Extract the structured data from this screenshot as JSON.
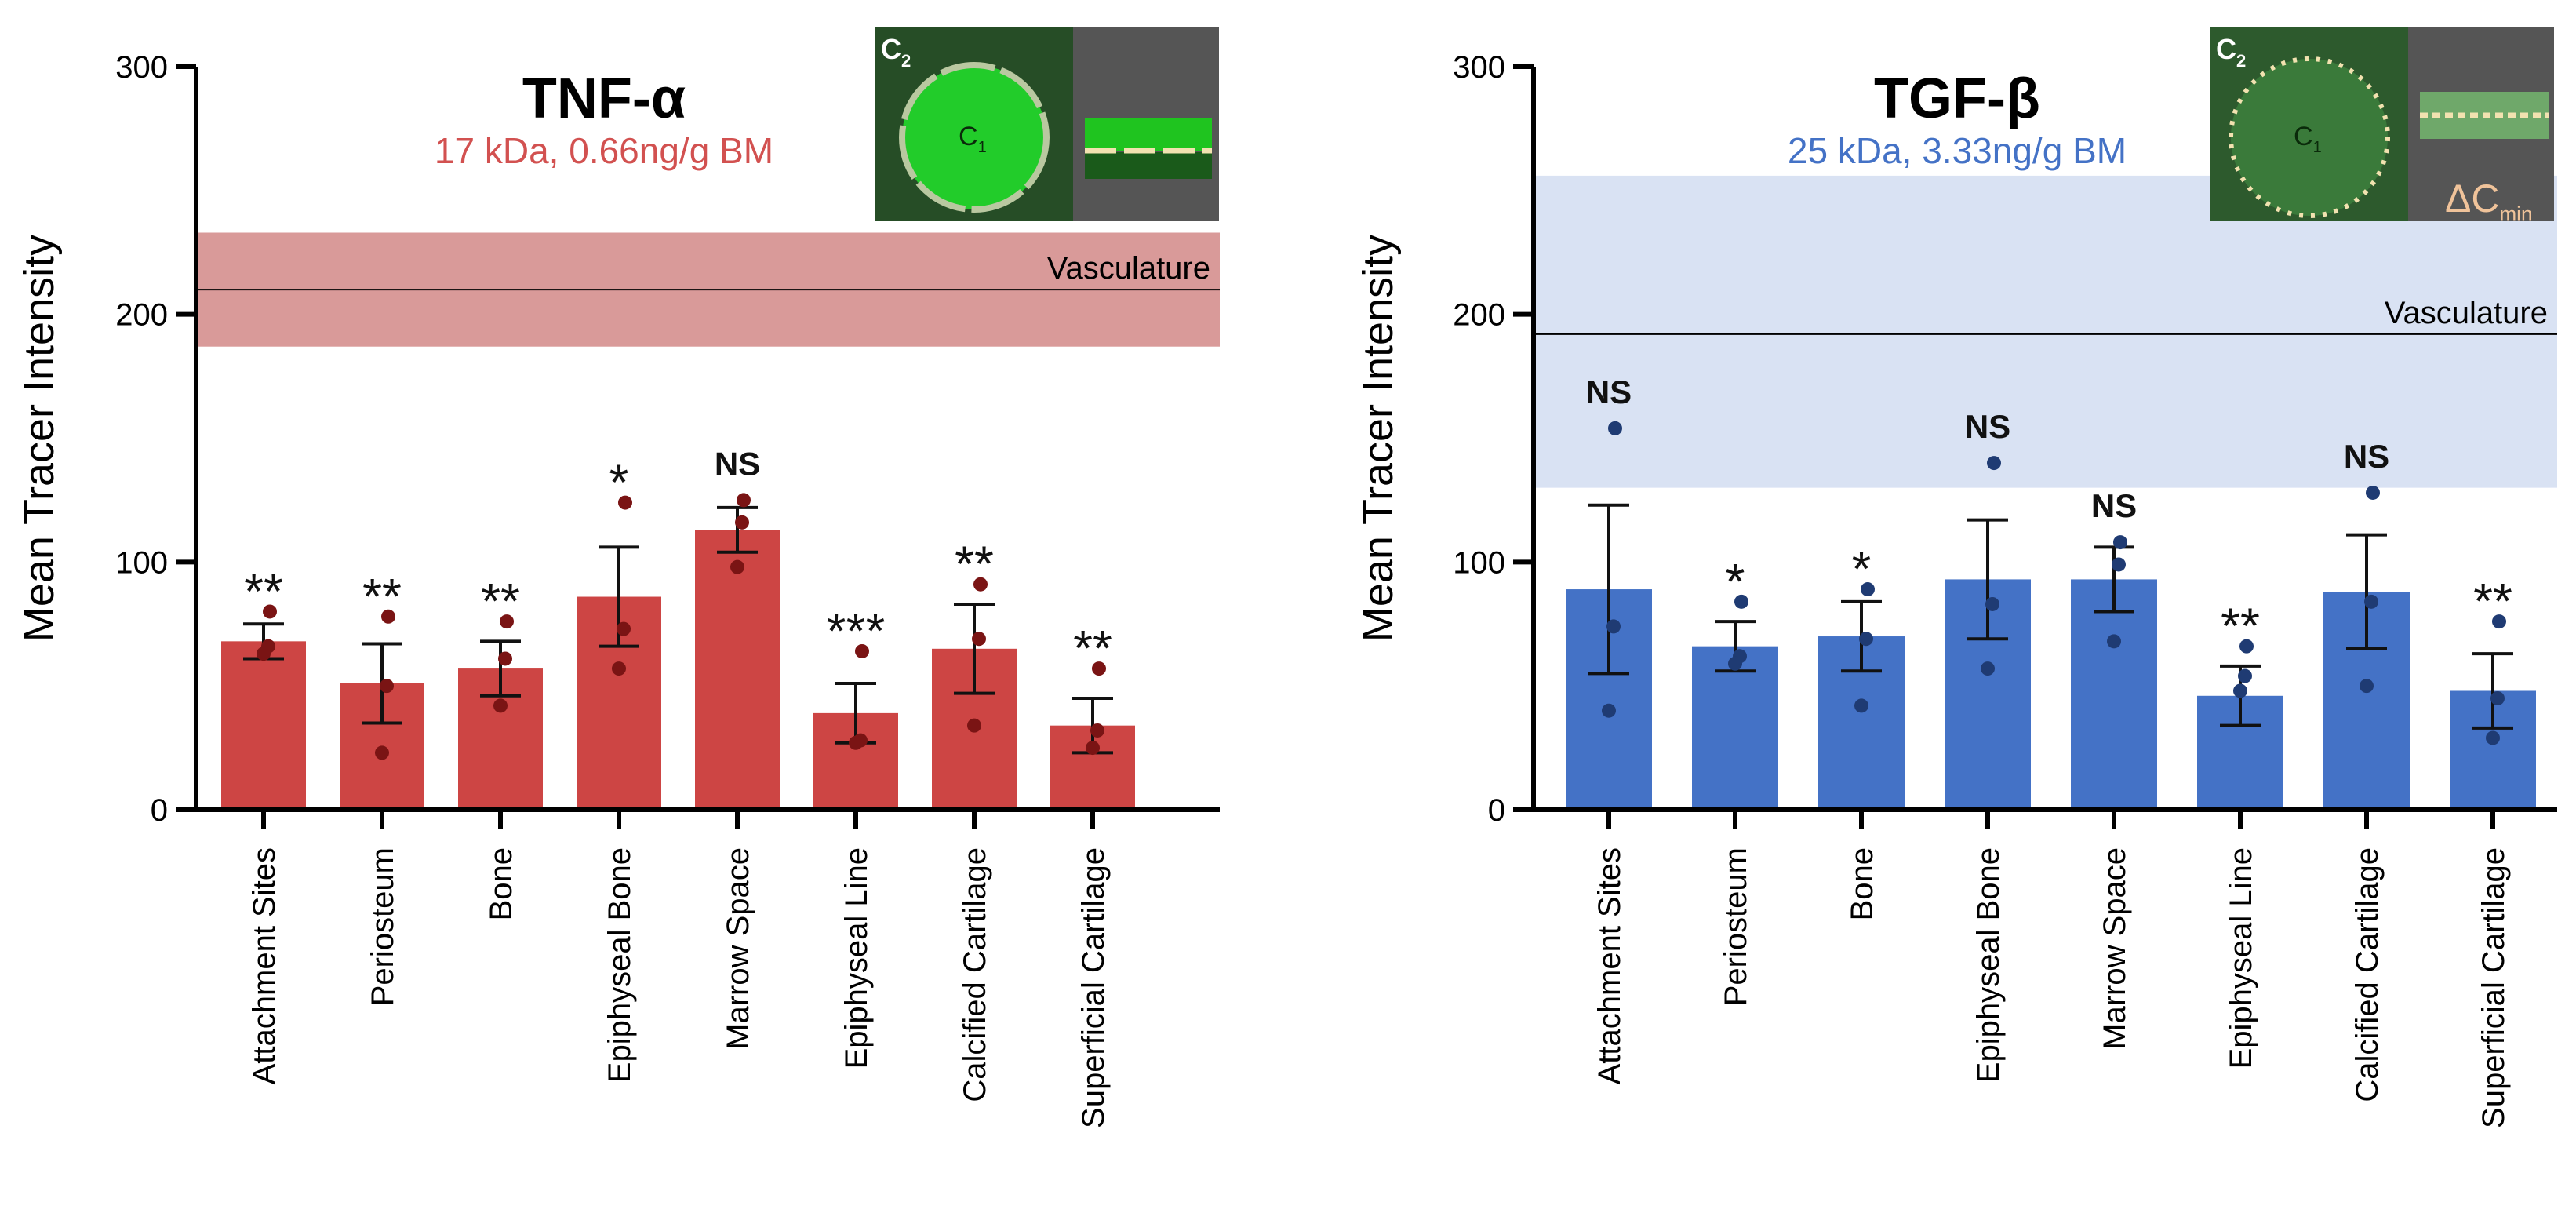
{
  "colors": {
    "tnf_bar": "#cd4544",
    "tnf_dot": "#7a1414",
    "tnf_band": "#d99a99",
    "tnf_subtitle": "#d25150",
    "tgf_bar": "#4472c6",
    "tgf_dot": "#1f3b73",
    "tgf_band": "#d9e2f3",
    "tgf_subtitle": "#4472c6",
    "axis": "#000000"
  },
  "chart_data": [
    {
      "type": "bar",
      "id": "tnf",
      "title": "TNF-α",
      "subtitle": "17 kDa, 0.66ng/g BM",
      "ylabel": "Mean Tracer Intensity",
      "xlabel": "",
      "ylim": [
        0,
        300
      ],
      "yticks": [
        0,
        100,
        200,
        300
      ],
      "categories": [
        "Attachment Sites",
        "Periosteum",
        "Bone",
        "Epiphyseal Bone",
        "Marrow Space",
        "Epiphyseal Line",
        "Calcified Cartilage",
        "Superficial Cartilage"
      ],
      "values": [
        68,
        51,
        57,
        86,
        113,
        39,
        65,
        34
      ],
      "sem": [
        7,
        16,
        11,
        20,
        9,
        12,
        18,
        11
      ],
      "points": [
        [
          80,
          66,
          63
        ],
        [
          78,
          50,
          23
        ],
        [
          76,
          61,
          42
        ],
        [
          124,
          73,
          57
        ],
        [
          125,
          116,
          98
        ],
        [
          64,
          28,
          27
        ],
        [
          91,
          69,
          34
        ],
        [
          57,
          32,
          25
        ]
      ],
      "significance": [
        "**",
        "**",
        "**",
        "*",
        "NS",
        "***",
        "**",
        "**"
      ],
      "reference": {
        "label": "Vasculature",
        "value": 210,
        "band": [
          187,
          233
        ]
      },
      "inset": {
        "outer_label": "C",
        "outer_sub": "2",
        "inner_label": "C",
        "inner_sub": "1"
      }
    },
    {
      "type": "bar",
      "id": "tgf",
      "title": "TGF-β",
      "subtitle": "25 kDa, 3.33ng/g BM",
      "ylabel": "Mean Tracer Intensity",
      "xlabel": "",
      "ylim": [
        0,
        300
      ],
      "yticks": [
        0,
        100,
        200,
        300
      ],
      "categories": [
        "Attachment Sites",
        "Periosteum",
        "Bone",
        "Epiphyseal Bone",
        "Marrow Space",
        "Epiphyseal Line",
        "Calcified Cartilage",
        "Superficial Cartilage"
      ],
      "values": [
        89,
        66,
        70,
        93,
        93,
        46,
        88,
        48
      ],
      "sem": [
        34,
        10,
        14,
        24,
        13,
        12,
        23,
        15
      ],
      "points": [
        [
          154,
          74,
          40
        ],
        [
          84,
          62,
          59
        ],
        [
          89,
          69,
          42
        ],
        [
          140,
          83,
          57
        ],
        [
          108,
          99,
          68
        ],
        [
          66,
          54,
          48
        ],
        [
          128,
          84,
          50
        ],
        [
          76,
          45,
          29
        ]
      ],
      "significance": [
        "NS",
        "*",
        "*",
        "NS",
        "NS",
        "**",
        "NS",
        "**"
      ],
      "reference": {
        "label": "Vasculature",
        "value": 192,
        "band": [
          130,
          256
        ]
      },
      "inset": {
        "outer_label": "C",
        "outer_sub": "2",
        "inner_label": "C",
        "inner_sub": "1",
        "delta_label": "ΔC",
        "delta_sub": "min"
      }
    }
  ]
}
